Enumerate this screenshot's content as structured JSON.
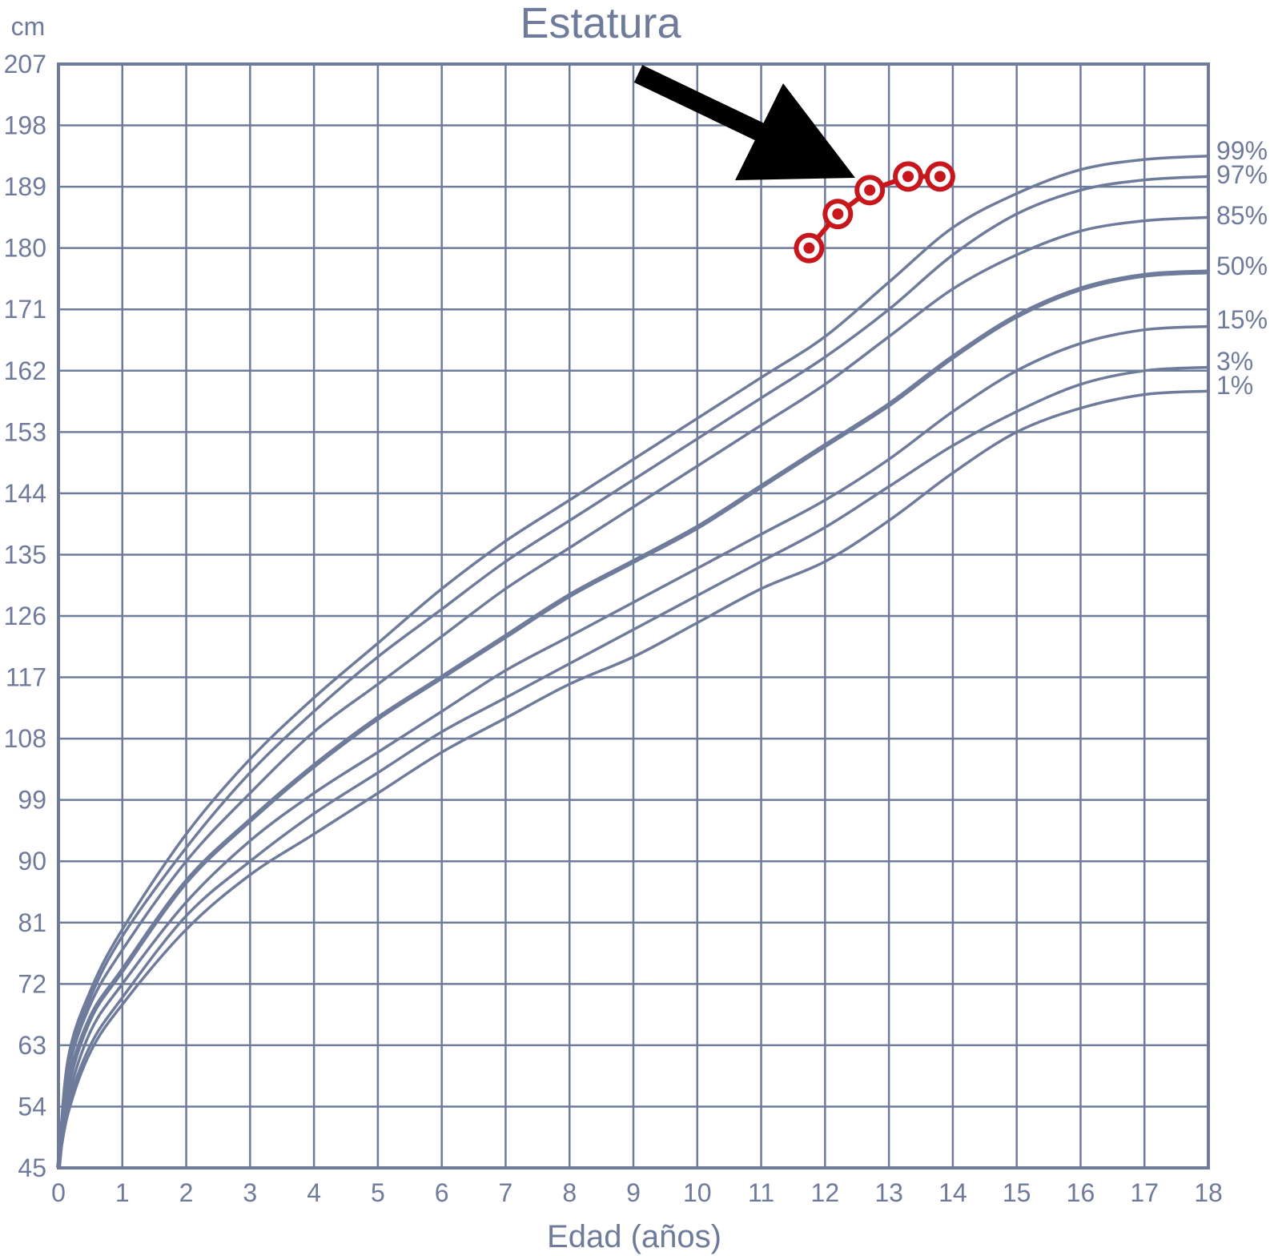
{
  "chart_data": {
    "type": "line",
    "title": "Estatura",
    "ylabel": "cm",
    "xlabel": "Edad (años)",
    "xlim": [
      0,
      18
    ],
    "ylim": [
      45,
      207
    ],
    "x_ticks": [
      "0",
      "1",
      "2",
      "3",
      "4",
      "5",
      "6",
      "7",
      "8",
      "9",
      "10",
      "11",
      "12",
      "13",
      "14",
      "15",
      "16",
      "17",
      "18"
    ],
    "y_ticks": [
      "45",
      "54",
      "63",
      "72",
      "81",
      "90",
      "99",
      "108",
      "117",
      "126",
      "135",
      "144",
      "153",
      "162",
      "171",
      "180",
      "189",
      "198",
      "207"
    ],
    "grid": true,
    "series": [
      {
        "name": "99%",
        "points": [
          [
            0,
            45
          ],
          [
            0.15,
            61
          ],
          [
            0.5,
            71
          ],
          [
            1,
            80
          ],
          [
            2,
            94
          ],
          [
            3,
            105
          ],
          [
            4,
            114
          ],
          [
            5,
            122
          ],
          [
            6,
            130
          ],
          [
            7,
            137
          ],
          [
            8,
            143
          ],
          [
            9,
            149
          ],
          [
            10,
            155
          ],
          [
            11,
            161
          ],
          [
            12,
            167
          ],
          [
            13,
            175
          ],
          [
            14,
            183
          ],
          [
            15,
            188
          ],
          [
            16,
            191.5
          ],
          [
            17,
            193
          ],
          [
            18,
            193.5
          ]
        ]
      },
      {
        "name": "97%",
        "points": [
          [
            0,
            45
          ],
          [
            0.15,
            60
          ],
          [
            0.5,
            70
          ],
          [
            1,
            79
          ],
          [
            2,
            92
          ],
          [
            3,
            103
          ],
          [
            4,
            112
          ],
          [
            5,
            120
          ],
          [
            6,
            127
          ],
          [
            7,
            134
          ],
          [
            8,
            140
          ],
          [
            9,
            146
          ],
          [
            10,
            152
          ],
          [
            11,
            158
          ],
          [
            12,
            164
          ],
          [
            13,
            171
          ],
          [
            14,
            179
          ],
          [
            15,
            185
          ],
          [
            16,
            188.5
          ],
          [
            17,
            190
          ],
          [
            18,
            190.5
          ]
        ]
      },
      {
        "name": "85%",
        "points": [
          [
            0,
            45
          ],
          [
            0.15,
            59
          ],
          [
            0.5,
            69
          ],
          [
            1,
            77
          ],
          [
            2,
            90
          ],
          [
            3,
            100
          ],
          [
            4,
            109
          ],
          [
            5,
            116
          ],
          [
            6,
            123
          ],
          [
            7,
            130
          ],
          [
            8,
            136
          ],
          [
            9,
            142
          ],
          [
            10,
            148
          ],
          [
            11,
            154
          ],
          [
            12,
            160
          ],
          [
            13,
            167
          ],
          [
            14,
            174
          ],
          [
            15,
            179
          ],
          [
            16,
            182.5
          ],
          [
            17,
            184
          ],
          [
            18,
            184.5
          ]
        ]
      },
      {
        "name": "50%",
        "points": [
          [
            0,
            45
          ],
          [
            0.15,
            57
          ],
          [
            0.5,
            67
          ],
          [
            1,
            74
          ],
          [
            2,
            87
          ],
          [
            3,
            96
          ],
          [
            4,
            104
          ],
          [
            5,
            111
          ],
          [
            6,
            117
          ],
          [
            7,
            123
          ],
          [
            8,
            129
          ],
          [
            9,
            134
          ],
          [
            10,
            139
          ],
          [
            11,
            145
          ],
          [
            12,
            151
          ],
          [
            13,
            157
          ],
          [
            14,
            164
          ],
          [
            15,
            170
          ],
          [
            16,
            174
          ],
          [
            17,
            176
          ],
          [
            18,
            176.5
          ]
        ]
      },
      {
        "name": "15%",
        "points": [
          [
            0,
            45
          ],
          [
            0.15,
            55
          ],
          [
            0.5,
            65
          ],
          [
            1,
            72
          ],
          [
            2,
            84
          ],
          [
            3,
            93
          ],
          [
            4,
            100
          ],
          [
            5,
            106
          ],
          [
            6,
            112
          ],
          [
            7,
            118
          ],
          [
            8,
            123
          ],
          [
            9,
            128
          ],
          [
            10,
            133
          ],
          [
            11,
            138
          ],
          [
            12,
            143
          ],
          [
            13,
            149
          ],
          [
            14,
            156
          ],
          [
            15,
            162
          ],
          [
            16,
            166
          ],
          [
            17,
            168
          ],
          [
            18,
            168.5
          ]
        ]
      },
      {
        "name": "3%",
        "points": [
          [
            0,
            45
          ],
          [
            0.15,
            54
          ],
          [
            0.5,
            63
          ],
          [
            1,
            70
          ],
          [
            2,
            82
          ],
          [
            3,
            90
          ],
          [
            4,
            97
          ],
          [
            5,
            103
          ],
          [
            6,
            109
          ],
          [
            7,
            114
          ],
          [
            8,
            119
          ],
          [
            9,
            124
          ],
          [
            10,
            129
          ],
          [
            11,
            134
          ],
          [
            12,
            139
          ],
          [
            13,
            145
          ],
          [
            14,
            151
          ],
          [
            15,
            156
          ],
          [
            16,
            160
          ],
          [
            17,
            162
          ],
          [
            18,
            162.5
          ]
        ]
      },
      {
        "name": "1%",
        "points": [
          [
            0,
            45
          ],
          [
            0.15,
            53
          ],
          [
            0.5,
            62
          ],
          [
            1,
            69
          ],
          [
            2,
            80
          ],
          [
            3,
            88
          ],
          [
            4,
            94
          ],
          [
            5,
            100
          ],
          [
            6,
            106
          ],
          [
            7,
            111
          ],
          [
            8,
            116
          ],
          [
            9,
            120
          ],
          [
            10,
            125
          ],
          [
            11,
            130
          ],
          [
            12,
            134
          ],
          [
            13,
            140
          ],
          [
            14,
            147
          ],
          [
            15,
            153
          ],
          [
            16,
            156.5
          ],
          [
            17,
            158.5
          ],
          [
            18,
            159
          ]
        ]
      }
    ],
    "highlighted_series": "50%",
    "measurements": [
      [
        11.75,
        180
      ],
      [
        12.2,
        185
      ],
      [
        12.7,
        188.5
      ],
      [
        13.3,
        190.5
      ],
      [
        13.8,
        190.5
      ]
    ],
    "measurement_color": "#c8161d",
    "curve_color": "#6f7b9b",
    "annotation": "black arrow pointing to the measurement points"
  }
}
